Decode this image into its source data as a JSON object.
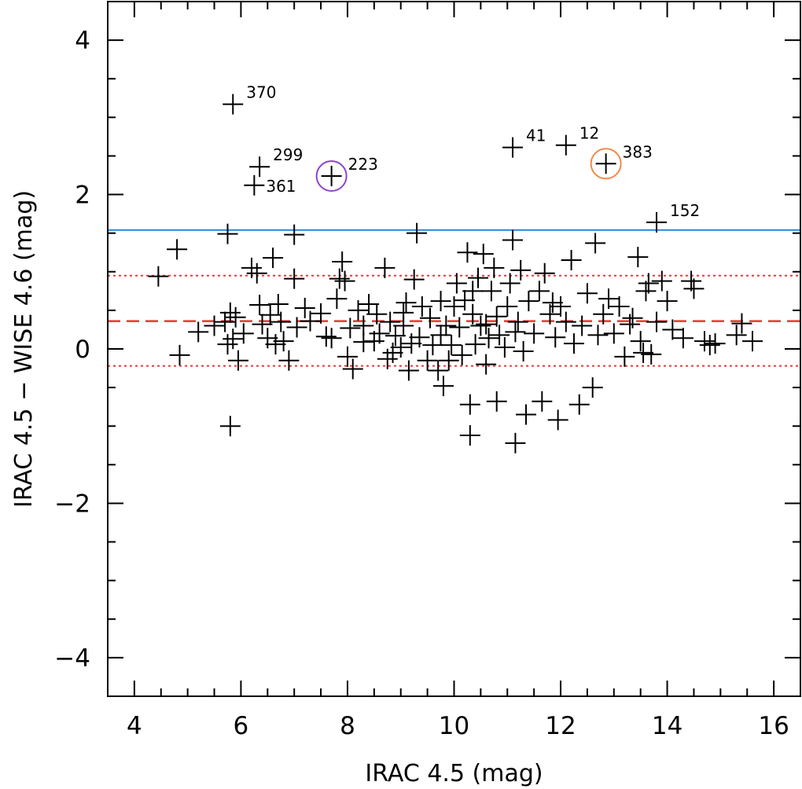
{
  "chart_data": {
    "type": "scatter",
    "title": "",
    "xlabel": "IRAC 4.5 (mag)",
    "ylabel": "IRAC 4.5 − WISE 4.6 (mag)",
    "xlim": [
      3.5,
      16.5
    ],
    "ylim": [
      -4.5,
      4.5
    ],
    "xticks": [
      4,
      6,
      8,
      10,
      12,
      14,
      16
    ],
    "xtick_labels": [
      "4",
      "6",
      "8",
      "10",
      "12",
      "14",
      "16"
    ],
    "yticks": [
      -4,
      -2,
      0,
      2,
      4
    ],
    "ytick_labels": [
      "−4",
      "−2",
      "0",
      "2",
      "4"
    ],
    "x_minor_step": 0.5,
    "y_minor_step": 0.5,
    "reference_lines": [
      {
        "name": "threshold-line",
        "y": 1.54,
        "color": "#1e88e5",
        "style": "solid"
      },
      {
        "name": "mean-line",
        "y": 0.36,
        "color": "#e53935",
        "style": "dashed"
      },
      {
        "name": "upper-sigma-line",
        "y": 0.95,
        "color": "#e53935",
        "style": "dotted"
      },
      {
        "name": "lower-sigma-line",
        "y": -0.22,
        "color": "#e53935",
        "style": "dotted"
      }
    ],
    "labeled_points": [
      {
        "label": "370",
        "x": 5.85,
        "y": 3.17
      },
      {
        "label": "299",
        "x": 6.35,
        "y": 2.36
      },
      {
        "label": "361",
        "x": 6.25,
        "y": 2.12
      },
      {
        "label": "223",
        "x": 7.7,
        "y": 2.24,
        "circle_color": "#8e44c8"
      },
      {
        "label": "41",
        "x": 11.1,
        "y": 2.61
      },
      {
        "label": "12",
        "x": 12.1,
        "y": 2.64
      },
      {
        "label": "383",
        "x": 12.85,
        "y": 2.4,
        "circle_color": "#f08a4b"
      },
      {
        "label": "152",
        "x": 13.8,
        "y": 1.64
      }
    ],
    "points": [
      [
        4.45,
        0.94
      ],
      [
        4.8,
        1.29
      ],
      [
        4.85,
        -0.08
      ],
      [
        5.2,
        0.22
      ],
      [
        5.5,
        0.3
      ],
      [
        5.7,
        0.35
      ],
      [
        5.75,
        1.49
      ],
      [
        5.75,
        0.06
      ],
      [
        5.8,
        0.47
      ],
      [
        5.8,
        -1.0
      ],
      [
        5.85,
        0.13
      ],
      [
        5.9,
        0.41
      ],
      [
        5.95,
        -0.15
      ],
      [
        6.05,
        0.2
      ],
      [
        6.2,
        1.05
      ],
      [
        6.3,
        0.98
      ],
      [
        6.35,
        0.57
      ],
      [
        6.4,
        0.32
      ],
      [
        6.5,
        0.14
      ],
      [
        6.55,
        0.44
      ],
      [
        6.6,
        1.18
      ],
      [
        6.65,
        0.06
      ],
      [
        6.7,
        0.58
      ],
      [
        6.75,
        0.35
      ],
      [
        6.8,
        0.1
      ],
      [
        6.9,
        -0.15
      ],
      [
        7.0,
        0.91
      ],
      [
        7.0,
        1.48
      ],
      [
        7.05,
        0.28
      ],
      [
        7.2,
        0.53
      ],
      [
        7.3,
        0.36
      ],
      [
        7.5,
        0.46
      ],
      [
        7.6,
        0.16
      ],
      [
        7.7,
        0.14
      ],
      [
        7.8,
        0.65
      ],
      [
        7.85,
        0.91
      ],
      [
        7.9,
        1.13
      ],
      [
        7.95,
        0.88
      ],
      [
        8.0,
        -0.1
      ],
      [
        8.05,
        0.27
      ],
      [
        8.1,
        -0.26
      ],
      [
        8.2,
        0.5
      ],
      [
        8.3,
        0.3
      ],
      [
        8.4,
        0.58
      ],
      [
        8.5,
        0.1
      ],
      [
        8.55,
        0.45
      ],
      [
        8.6,
        0.2
      ],
      [
        8.7,
        1.05
      ],
      [
        8.75,
        -0.13
      ],
      [
        8.8,
        0.35
      ],
      [
        8.85,
        -0.05
      ],
      [
        8.9,
        0.17
      ],
      [
        9.0,
        0.02
      ],
      [
        9.05,
        0.3
      ],
      [
        9.1,
        0.6
      ],
      [
        9.15,
        -0.28
      ],
      [
        9.2,
        0.07
      ],
      [
        9.25,
        0.9
      ],
      [
        9.3,
        1.5
      ],
      [
        9.35,
        0.15
      ],
      [
        9.4,
        0.55
      ],
      [
        9.5,
        -0.15
      ],
      [
        9.55,
        0.4
      ],
      [
        9.6,
        0.05
      ],
      [
        9.7,
        -0.28
      ],
      [
        9.75,
        0.62
      ],
      [
        9.8,
        -0.48
      ],
      [
        9.85,
        0.3
      ],
      [
        9.9,
        -0.15
      ],
      [
        9.95,
        0.05
      ],
      [
        10.0,
        0.55
      ],
      [
        10.05,
        0.85
      ],
      [
        10.1,
        0.28
      ],
      [
        10.15,
        -0.08
      ],
      [
        10.2,
        0.63
      ],
      [
        10.25,
        1.25
      ],
      [
        10.3,
        -0.72
      ],
      [
        10.3,
        -1.12
      ],
      [
        10.35,
        0.45
      ],
      [
        10.4,
        0.06
      ],
      [
        10.45,
        0.92
      ],
      [
        10.5,
        0.3
      ],
      [
        10.55,
        1.23
      ],
      [
        10.6,
        -0.2
      ],
      [
        10.65,
        0.14
      ],
      [
        10.7,
        0.75
      ],
      [
        10.75,
        1.05
      ],
      [
        10.8,
        0.42
      ],
      [
        10.85,
        0.18
      ],
      [
        10.8,
        -0.68
      ],
      [
        10.95,
        0.02
      ],
      [
        11.0,
        0.55
      ],
      [
        11.05,
        0.85
      ],
      [
        11.1,
        1.41
      ],
      [
        11.15,
        -1.22
      ],
      [
        11.2,
        0.35
      ],
      [
        11.25,
        1.02
      ],
      [
        11.3,
        -0.03
      ],
      [
        11.35,
        -0.85
      ],
      [
        11.4,
        0.62
      ],
      [
        11.5,
        0.2
      ],
      [
        11.6,
        0.75
      ],
      [
        11.65,
        -0.68
      ],
      [
        11.7,
        0.98
      ],
      [
        11.8,
        0.45
      ],
      [
        11.85,
        0.6
      ],
      [
        11.9,
        0.15
      ],
      [
        11.95,
        -0.92
      ],
      [
        12.0,
        0.55
      ],
      [
        12.1,
        0.35
      ],
      [
        12.2,
        1.15
      ],
      [
        12.25,
        0.07
      ],
      [
        12.35,
        -0.72
      ],
      [
        12.4,
        0.3
      ],
      [
        12.5,
        0.72
      ],
      [
        12.6,
        -0.5
      ],
      [
        12.65,
        1.37
      ],
      [
        12.7,
        0.18
      ],
      [
        12.8,
        0.45
      ],
      [
        12.9,
        0.65
      ],
      [
        13.0,
        0.2
      ],
      [
        13.1,
        0.55
      ],
      [
        13.2,
        -0.1
      ],
      [
        13.3,
        0.32
      ],
      [
        13.35,
        0.4
      ],
      [
        13.45,
        1.19
      ],
      [
        13.5,
        0.1
      ],
      [
        13.55,
        -0.05
      ],
      [
        13.6,
        0.75
      ],
      [
        13.65,
        0.85
      ],
      [
        13.7,
        -0.07
      ],
      [
        13.8,
        0.35
      ],
      [
        13.9,
        0.88
      ],
      [
        14.0,
        0.62
      ],
      [
        14.1,
        0.25
      ],
      [
        14.3,
        0.14
      ],
      [
        14.45,
        0.88
      ],
      [
        14.5,
        0.78
      ],
      [
        14.7,
        0.1
      ],
      [
        14.8,
        0.05
      ],
      [
        14.9,
        0.07
      ],
      [
        15.3,
        0.18
      ],
      [
        15.4,
        0.33
      ],
      [
        15.6,
        0.1
      ],
      [
        8.3,
        0.09
      ],
      [
        9.75,
        0.18
      ],
      [
        10.6,
        0.32
      ],
      [
        11.15,
        0.22
      ],
      [
        10.35,
        0.75
      ],
      [
        9.05,
        0.47
      ]
    ]
  }
}
